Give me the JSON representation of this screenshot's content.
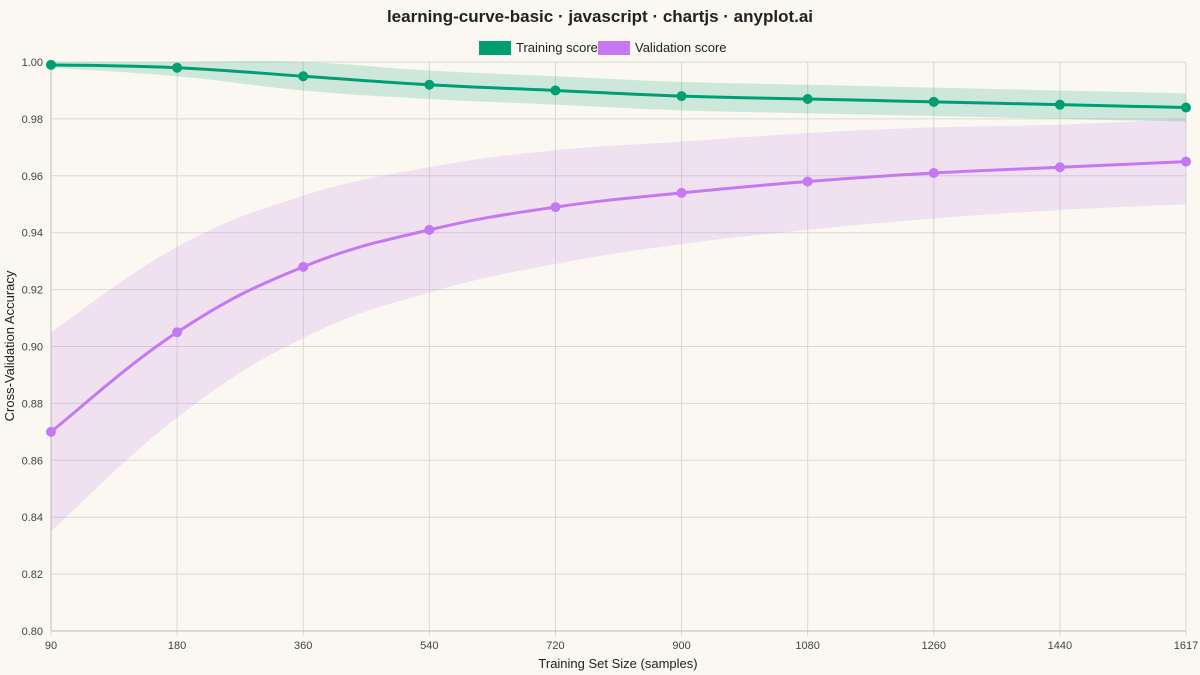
{
  "chart_data": {
    "type": "line",
    "title": "learning-curve-basic · javascript · chartjs · anyplot.ai",
    "xlabel": "Training Set Size (samples)",
    "ylabel": "Cross-Validation Accuracy",
    "categories": [
      "90",
      "180",
      "360",
      "540",
      "720",
      "900",
      "1080",
      "1260",
      "1440",
      "1617"
    ],
    "ylim": [
      0.8,
      1.0
    ],
    "yticks": [
      "0.80",
      "0.82",
      "0.84",
      "0.86",
      "0.88",
      "0.90",
      "0.92",
      "0.94",
      "0.96",
      "0.98",
      "1.00"
    ],
    "grid": true,
    "legend_position": "top",
    "series": [
      {
        "name": "Training score",
        "color": "#009E73",
        "band_color": "rgba(0,158,115,0.18)",
        "values": [
          0.999,
          0.998,
          0.995,
          0.992,
          0.99,
          0.988,
          0.987,
          0.986,
          0.985,
          0.984
        ],
        "upper": [
          1.0,
          1.0,
          1.0,
          0.997,
          0.995,
          0.993,
          0.992,
          0.991,
          0.99,
          0.989
        ],
        "lower": [
          0.998,
          0.995,
          0.99,
          0.987,
          0.985,
          0.983,
          0.982,
          0.981,
          0.98,
          0.979
        ]
      },
      {
        "name": "Validation score",
        "color": "#C479F2",
        "band_color": "rgba(196,121,242,0.18)",
        "values": [
          0.87,
          0.905,
          0.928,
          0.941,
          0.949,
          0.954,
          0.958,
          0.961,
          0.963,
          0.965
        ],
        "upper": [
          0.905,
          0.935,
          0.953,
          0.963,
          0.969,
          0.972,
          0.975,
          0.977,
          0.978,
          0.98
        ],
        "lower": [
          0.835,
          0.875,
          0.903,
          0.919,
          0.929,
          0.936,
          0.941,
          0.945,
          0.948,
          0.95
        ]
      }
    ]
  }
}
